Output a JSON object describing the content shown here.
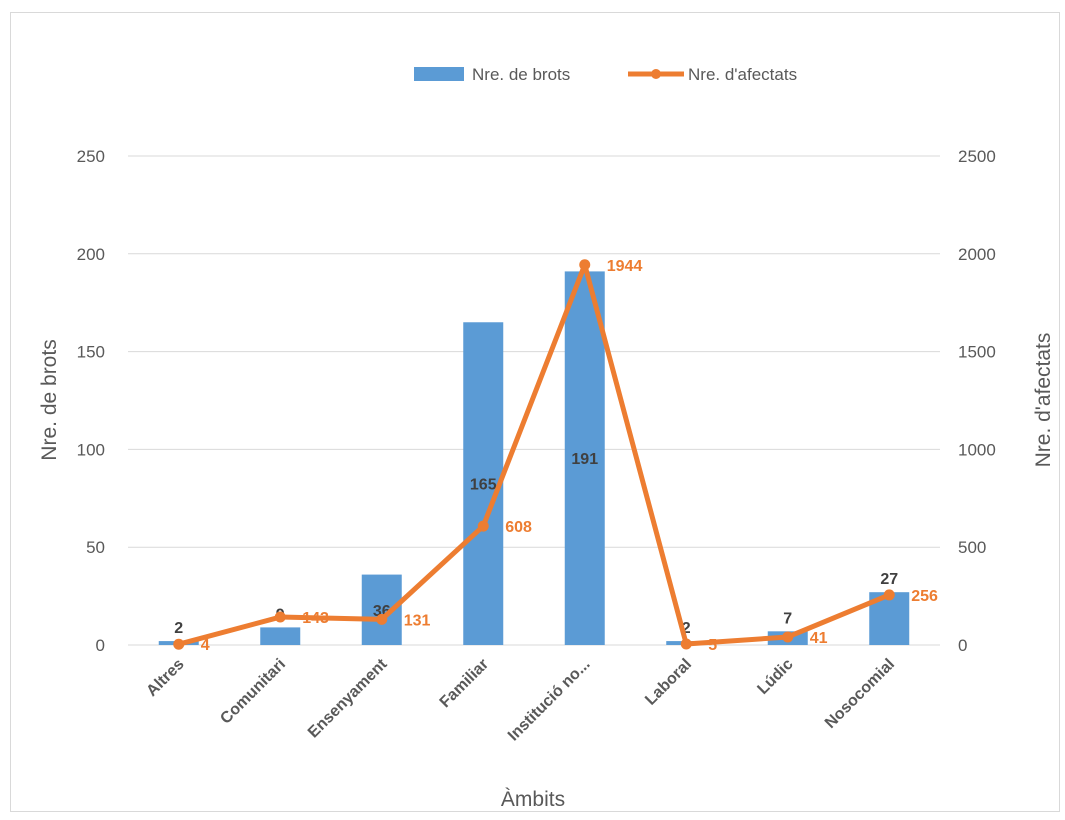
{
  "chart_data": {
    "type": "bar",
    "xlabel": "Àmbits",
    "ylabel": "Nre. de brots",
    "y2label": "Nre. d'afectats",
    "categories": [
      "Altres",
      "Comunitari",
      "Ensenyament",
      "Familiar",
      "Institució no...",
      "Laboral",
      "Lúdic",
      "Nosocomial"
    ],
    "series": [
      {
        "name": "Nre. de brots",
        "type": "bar",
        "axis": "left",
        "color": "#5B9BD5",
        "values": [
          2,
          9,
          36,
          165,
          191,
          2,
          7,
          27
        ]
      },
      {
        "name": "Nre. d'afectats",
        "type": "line",
        "axis": "right",
        "color": "#ED7D31",
        "values": [
          4,
          143,
          131,
          608,
          1944,
          5,
          41,
          256
        ]
      }
    ],
    "ylim": [
      0,
      250
    ],
    "y2lim": [
      0,
      2500
    ],
    "yticks": [
      "0",
      "50",
      "100",
      "150",
      "200",
      "250"
    ],
    "y2ticks": [
      "0",
      "500",
      "1000",
      "1500",
      "2000",
      "2500"
    ],
    "grid": true,
    "legend": "top"
  }
}
